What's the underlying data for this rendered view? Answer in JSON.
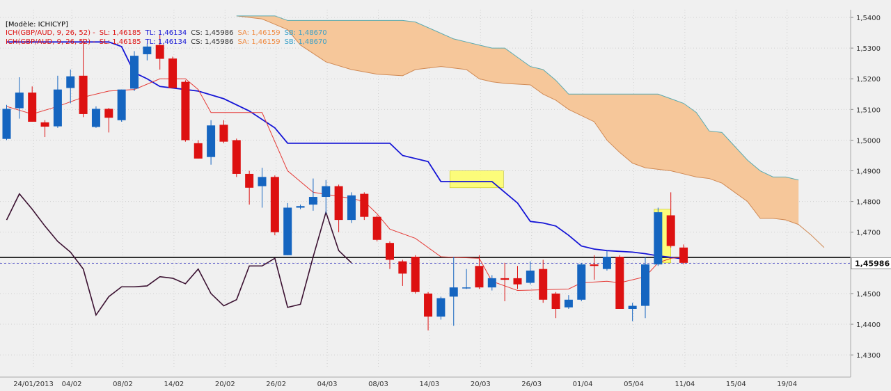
{
  "header": {
    "model_label": "[Modèle: ICHICYP]",
    "legend_rows": [
      {
        "series": "ICH(GBP/AUD, 9, 26, 52) -",
        "sl": "SL: 1,46185",
        "tl": "TL: 1,46134",
        "cs": "CS: 1,45986",
        "sa": "SA: 1,46159",
        "sb": "SB: 1,48670"
      },
      {
        "series": "ICH(GBP/AUD, 9, 26, 52) -",
        "sl": "SL: 1,46185",
        "tl": "TL: 1,46134",
        "cs": "CS: 1,45986",
        "sa": "SA: 1,46159",
        "sb": "SB: 1,48670"
      }
    ]
  },
  "colors": {
    "background": "#f0f0f0",
    "up_candle": "#1565c0",
    "down_candle": "#dd1111",
    "tenkan": "#e53935",
    "kijun": "#1414d6",
    "chikou": "#3a1030",
    "cloud_fill": "#f6c79a",
    "cloud_edge_a": "#d08a55",
    "cloud_edge_b": "#5aaab0",
    "support_line": "#000000",
    "price_line": "#6666cc",
    "highlight": "#ffff66"
  },
  "chart_data": {
    "type": "candlestick",
    "instrument": "GBP/AUD",
    "ylim": [
      1.4255,
      1.5425
    ],
    "y_ticks": [
      "1,4300",
      "1,4400",
      "1,4500",
      "1,4600",
      "1,4700",
      "1,4800",
      "1,4900",
      "1,5000",
      "1,5100",
      "1,5200",
      "1,5300",
      "1,5400"
    ],
    "x_ticks": [
      "24/01/2013",
      "04/02",
      "08/02",
      "14/02",
      "20/02",
      "26/02",
      "04/03",
      "08/03",
      "14/03",
      "20/03",
      "26/03",
      "01/04",
      "05/04",
      "11/04",
      "15/04",
      "19/04"
    ],
    "last_price_label": "1,45986",
    "last_price": 1.45986,
    "support_level": 1.4618,
    "candles": [
      {
        "o": 1.5004,
        "h": 1.5115,
        "l": 1.5,
        "c": 1.5102
      },
      {
        "o": 1.5104,
        "h": 1.5205,
        "l": 1.507,
        "c": 1.5155
      },
      {
        "o": 1.5155,
        "h": 1.5175,
        "l": 1.506,
        "c": 1.506
      },
      {
        "o": 1.5058,
        "h": 1.5065,
        "l": 1.501,
        "c": 1.5044
      },
      {
        "o": 1.5045,
        "h": 1.521,
        "l": 1.504,
        "c": 1.5165
      },
      {
        "o": 1.517,
        "h": 1.523,
        "l": 1.512,
        "c": 1.5208
      },
      {
        "o": 1.521,
        "h": 1.533,
        "l": 1.5075,
        "c": 1.5085
      },
      {
        "o": 1.5043,
        "h": 1.511,
        "l": 1.504,
        "c": 1.5102
      },
      {
        "o": 1.5102,
        "h": 1.5105,
        "l": 1.5025,
        "c": 1.5073
      },
      {
        "o": 1.5065,
        "h": 1.5165,
        "l": 1.506,
        "c": 1.5165
      },
      {
        "o": 1.5168,
        "h": 1.529,
        "l": 1.516,
        "c": 1.5275
      },
      {
        "o": 1.528,
        "h": 1.5315,
        "l": 1.526,
        "c": 1.5305
      },
      {
        "o": 1.531,
        "h": 1.5345,
        "l": 1.523,
        "c": 1.5265
      },
      {
        "o": 1.5266,
        "h": 1.5272,
        "l": 1.517,
        "c": 1.517
      },
      {
        "o": 1.519,
        "h": 1.5195,
        "l": 1.4995,
        "c": 1.5
      },
      {
        "o": 1.499,
        "h": 1.5,
        "l": 1.494,
        "c": 1.494
      },
      {
        "o": 1.4945,
        "h": 1.5065,
        "l": 1.492,
        "c": 1.5048
      },
      {
        "o": 1.505,
        "h": 1.5065,
        "l": 1.499,
        "c": 1.4995
      },
      {
        "o": 1.5,
        "h": 1.5005,
        "l": 1.488,
        "c": 1.489
      },
      {
        "o": 1.489,
        "h": 1.49,
        "l": 1.479,
        "c": 1.4845
      },
      {
        "o": 1.485,
        "h": 1.491,
        "l": 1.478,
        "c": 1.488
      },
      {
        "o": 1.488,
        "h": 1.4885,
        "l": 1.469,
        "c": 1.47
      },
      {
        "o": 1.4625,
        "h": 1.4795,
        "l": 1.4625,
        "c": 1.478
      },
      {
        "o": 1.478,
        "h": 1.479,
        "l": 1.4775,
        "c": 1.4785
      },
      {
        "o": 1.479,
        "h": 1.4875,
        "l": 1.477,
        "c": 1.4815
      },
      {
        "o": 1.4815,
        "h": 1.487,
        "l": 1.476,
        "c": 1.485
      },
      {
        "o": 1.485,
        "h": 1.4855,
        "l": 1.47,
        "c": 1.474
      },
      {
        "o": 1.474,
        "h": 1.483,
        "l": 1.473,
        "c": 1.482
      },
      {
        "o": 1.4825,
        "h": 1.483,
        "l": 1.474,
        "c": 1.475
      },
      {
        "o": 1.475,
        "h": 1.4755,
        "l": 1.467,
        "c": 1.4675
      },
      {
        "o": 1.4665,
        "h": 1.467,
        "l": 1.458,
        "c": 1.461
      },
      {
        "o": 1.4605,
        "h": 1.461,
        "l": 1.4525,
        "c": 1.4565
      },
      {
        "o": 1.462,
        "h": 1.4625,
        "l": 1.45,
        "c": 1.4505
      },
      {
        "o": 1.45,
        "h": 1.4505,
        "l": 1.438,
        "c": 1.4425
      },
      {
        "o": 1.4425,
        "h": 1.449,
        "l": 1.4415,
        "c": 1.4485
      },
      {
        "o": 1.449,
        "h": 1.462,
        "l": 1.4395,
        "c": 1.452
      },
      {
        "o": 1.452,
        "h": 1.458,
        "l": 1.4515,
        "c": 1.452
      },
      {
        "o": 1.459,
        "h": 1.4625,
        "l": 1.4515,
        "c": 1.452
      },
      {
        "o": 1.452,
        "h": 1.456,
        "l": 1.451,
        "c": 1.455
      },
      {
        "o": 1.455,
        "h": 1.46,
        "l": 1.4475,
        "c": 1.4545
      },
      {
        "o": 1.455,
        "h": 1.459,
        "l": 1.4515,
        "c": 1.453
      },
      {
        "o": 1.4535,
        "h": 1.4605,
        "l": 1.453,
        "c": 1.4575
      },
      {
        "o": 1.458,
        "h": 1.461,
        "l": 1.447,
        "c": 1.448
      },
      {
        "o": 1.45,
        "h": 1.4505,
        "l": 1.442,
        "c": 1.445
      },
      {
        "o": 1.4455,
        "h": 1.4495,
        "l": 1.445,
        "c": 1.448
      },
      {
        "o": 1.448,
        "h": 1.46,
        "l": 1.4475,
        "c": 1.4595
      },
      {
        "o": 1.4595,
        "h": 1.4625,
        "l": 1.4545,
        "c": 1.459
      },
      {
        "o": 1.458,
        "h": 1.464,
        "l": 1.4575,
        "c": 1.462
      },
      {
        "o": 1.462,
        "h": 1.4625,
        "l": 1.445,
        "c": 1.445
      },
      {
        "o": 1.445,
        "h": 1.447,
        "l": 1.441,
        "c": 1.446
      },
      {
        "o": 1.446,
        "h": 1.462,
        "l": 1.442,
        "c": 1.4595
      },
      {
        "o": 1.4595,
        "h": 1.478,
        "l": 1.459,
        "c": 1.4765
      },
      {
        "o": 1.4755,
        "h": 1.483,
        "l": 1.465,
        "c": 1.4655
      },
      {
        "o": 1.465,
        "h": 1.466,
        "l": 1.4595,
        "c": 1.46
      }
    ],
    "tenkan_sen": [
      {
        "i": 0,
        "v": 1.511
      },
      {
        "i": 2,
        "v": 1.5085
      },
      {
        "i": 4,
        "v": 1.511
      },
      {
        "i": 6,
        "v": 1.514
      },
      {
        "i": 8,
        "v": 1.516
      },
      {
        "i": 10,
        "v": 1.5165
      },
      {
        "i": 12,
        "v": 1.52
      },
      {
        "i": 14,
        "v": 1.52
      },
      {
        "i": 15,
        "v": 1.5165
      },
      {
        "i": 16,
        "v": 1.509
      },
      {
        "i": 20,
        "v": 1.509
      },
      {
        "i": 22,
        "v": 1.49
      },
      {
        "i": 24,
        "v": 1.483
      },
      {
        "i": 27,
        "v": 1.481
      },
      {
        "i": 28,
        "v": 1.48
      },
      {
        "i": 29,
        "v": 1.476
      },
      {
        "i": 30,
        "v": 1.471
      },
      {
        "i": 32,
        "v": 1.468
      },
      {
        "i": 34,
        "v": 1.462
      },
      {
        "i": 37,
        "v": 1.4615
      },
      {
        "i": 38,
        "v": 1.454
      },
      {
        "i": 40,
        "v": 1.451
      },
      {
        "i": 44,
        "v": 1.4515
      },
      {
        "i": 45,
        "v": 1.4535
      },
      {
        "i": 47,
        "v": 1.454
      },
      {
        "i": 48,
        "v": 1.4535
      },
      {
        "i": 49,
        "v": 1.4545
      },
      {
        "i": 50,
        "v": 1.4555
      },
      {
        "i": 51,
        "v": 1.46
      },
      {
        "i": 52,
        "v": 1.4615
      },
      {
        "i": 53,
        "v": 1.4619
      }
    ],
    "kijun_sen": [
      {
        "i": 0,
        "v": 1.532
      },
      {
        "i": 8,
        "v": 1.532
      },
      {
        "i": 9,
        "v": 1.5305
      },
      {
        "i": 10,
        "v": 1.522
      },
      {
        "i": 11,
        "v": 1.52
      },
      {
        "i": 12,
        "v": 1.5175
      },
      {
        "i": 15,
        "v": 1.516
      },
      {
        "i": 17,
        "v": 1.5135
      },
      {
        "i": 19,
        "v": 1.5095
      },
      {
        "i": 21,
        "v": 1.504
      },
      {
        "i": 22,
        "v": 1.499
      },
      {
        "i": 30,
        "v": 1.499
      },
      {
        "i": 31,
        "v": 1.495
      },
      {
        "i": 33,
        "v": 1.493
      },
      {
        "i": 34,
        "v": 1.4865
      },
      {
        "i": 38,
        "v": 1.4865
      },
      {
        "i": 39,
        "v": 1.483
      },
      {
        "i": 40,
        "v": 1.4795
      },
      {
        "i": 41,
        "v": 1.4735
      },
      {
        "i": 42,
        "v": 1.473
      },
      {
        "i": 43,
        "v": 1.472
      },
      {
        "i": 44,
        "v": 1.469
      },
      {
        "i": 45,
        "v": 1.4655
      },
      {
        "i": 46,
        "v": 1.4645
      },
      {
        "i": 47,
        "v": 1.464
      },
      {
        "i": 49,
        "v": 1.4635
      },
      {
        "i": 50,
        "v": 1.463
      },
      {
        "i": 51,
        "v": 1.4623
      },
      {
        "i": 52,
        "v": 1.4618
      },
      {
        "i": 53,
        "v": 1.4613
      }
    ],
    "chikou_span": [
      {
        "i": 0,
        "v": 1.474
      },
      {
        "i": 1,
        "v": 1.4825
      },
      {
        "i": 2,
        "v": 1.4775
      },
      {
        "i": 3,
        "v": 1.472
      },
      {
        "i": 4,
        "v": 1.467
      },
      {
        "i": 5,
        "v": 1.4635
      },
      {
        "i": 6,
        "v": 1.458
      },
      {
        "i": 7,
        "v": 1.443
      },
      {
        "i": 8,
        "v": 1.449
      },
      {
        "i": 9,
        "v": 1.4522
      },
      {
        "i": 10,
        "v": 1.4522
      },
      {
        "i": 11,
        "v": 1.4525
      },
      {
        "i": 12,
        "v": 1.4555
      },
      {
        "i": 13,
        "v": 1.455
      },
      {
        "i": 14,
        "v": 1.4532
      },
      {
        "i": 15,
        "v": 1.458
      },
      {
        "i": 16,
        "v": 1.45
      },
      {
        "i": 17,
        "v": 1.446
      },
      {
        "i": 18,
        "v": 1.448
      },
      {
        "i": 19,
        "v": 1.459
      },
      {
        "i": 20,
        "v": 1.459
      },
      {
        "i": 21,
        "v": 1.4615
      },
      {
        "i": 22,
        "v": 1.4455
      },
      {
        "i": 23,
        "v": 1.4465
      },
      {
        "i": 24,
        "v": 1.462
      },
      {
        "i": 25,
        "v": 1.4765
      },
      {
        "i": 26,
        "v": 1.464
      },
      {
        "i": 27,
        "v": 1.46
      }
    ],
    "senkou_span_a": [
      {
        "i": 18,
        "v": 1.5405
      },
      {
        "i": 20,
        "v": 1.5395
      },
      {
        "i": 22,
        "v": 1.536
      },
      {
        "i": 23,
        "v": 1.531
      },
      {
        "i": 25,
        "v": 1.5255
      },
      {
        "i": 27,
        "v": 1.523
      },
      {
        "i": 29,
        "v": 1.5215
      },
      {
        "i": 31,
        "v": 1.521
      },
      {
        "i": 32,
        "v": 1.523
      },
      {
        "i": 34,
        "v": 1.524
      },
      {
        "i": 36,
        "v": 1.523
      },
      {
        "i": 37,
        "v": 1.52
      },
      {
        "i": 38,
        "v": 1.519
      },
      {
        "i": 39,
        "v": 1.5185
      },
      {
        "i": 41,
        "v": 1.518
      },
      {
        "i": 42,
        "v": 1.515
      },
      {
        "i": 43,
        "v": 1.513
      },
      {
        "i": 44,
        "v": 1.51
      },
      {
        "i": 46,
        "v": 1.506
      },
      {
        "i": 47,
        "v": 1.5
      },
      {
        "i": 48,
        "v": 1.496
      },
      {
        "i": 49,
        "v": 1.4925
      },
      {
        "i": 50,
        "v": 1.491
      },
      {
        "i": 51,
        "v": 1.4905
      },
      {
        "i": 52,
        "v": 1.49
      },
      {
        "i": 53,
        "v": 1.489
      },
      {
        "i": 54,
        "v": 1.488
      },
      {
        "i": 55,
        "v": 1.4875
      },
      {
        "i": 56,
        "v": 1.486
      },
      {
        "i": 57,
        "v": 1.483
      },
      {
        "i": 58,
        "v": 1.48
      },
      {
        "i": 59,
        "v": 1.4745
      },
      {
        "i": 60,
        "v": 1.4745
      },
      {
        "i": 61,
        "v": 1.474
      },
      {
        "i": 62,
        "v": 1.4725
      },
      {
        "i": 63,
        "v": 1.469
      },
      {
        "i": 64,
        "v": 1.465
      }
    ],
    "senkou_span_b": [
      {
        "i": 18,
        "v": 1.5405
      },
      {
        "i": 21,
        "v": 1.5405
      },
      {
        "i": 22,
        "v": 1.539
      },
      {
        "i": 31,
        "v": 1.539
      },
      {
        "i": 32,
        "v": 1.5385
      },
      {
        "i": 35,
        "v": 1.533
      },
      {
        "i": 36,
        "v": 1.532
      },
      {
        "i": 37,
        "v": 1.531
      },
      {
        "i": 38,
        "v": 1.53
      },
      {
        "i": 39,
        "v": 1.53
      },
      {
        "i": 40,
        "v": 1.527
      },
      {
        "i": 41,
        "v": 1.524
      },
      {
        "i": 42,
        "v": 1.523
      },
      {
        "i": 43,
        "v": 1.5195
      },
      {
        "i": 44,
        "v": 1.515
      },
      {
        "i": 47,
        "v": 1.515
      },
      {
        "i": 51,
        "v": 1.515
      },
      {
        "i": 52,
        "v": 1.5135
      },
      {
        "i": 53,
        "v": 1.512
      },
      {
        "i": 54,
        "v": 1.509
      },
      {
        "i": 55,
        "v": 1.503
      },
      {
        "i": 56,
        "v": 1.5025
      },
      {
        "i": 57,
        "v": 1.498
      },
      {
        "i": 58,
        "v": 1.4935
      },
      {
        "i": 59,
        "v": 1.49
      },
      {
        "i": 60,
        "v": 1.488
      },
      {
        "i": 61,
        "v": 1.488
      },
      {
        "i": 62,
        "v": 1.487
      }
    ],
    "highlights": [
      {
        "from_i": 34.7,
        "to_i": 38.9,
        "low": 1.4845,
        "high": 1.49
      },
      {
        "from_i": 50.7,
        "to_i": 52.0,
        "low": 1.46,
        "high": 1.4775
      }
    ],
    "grid": true
  }
}
